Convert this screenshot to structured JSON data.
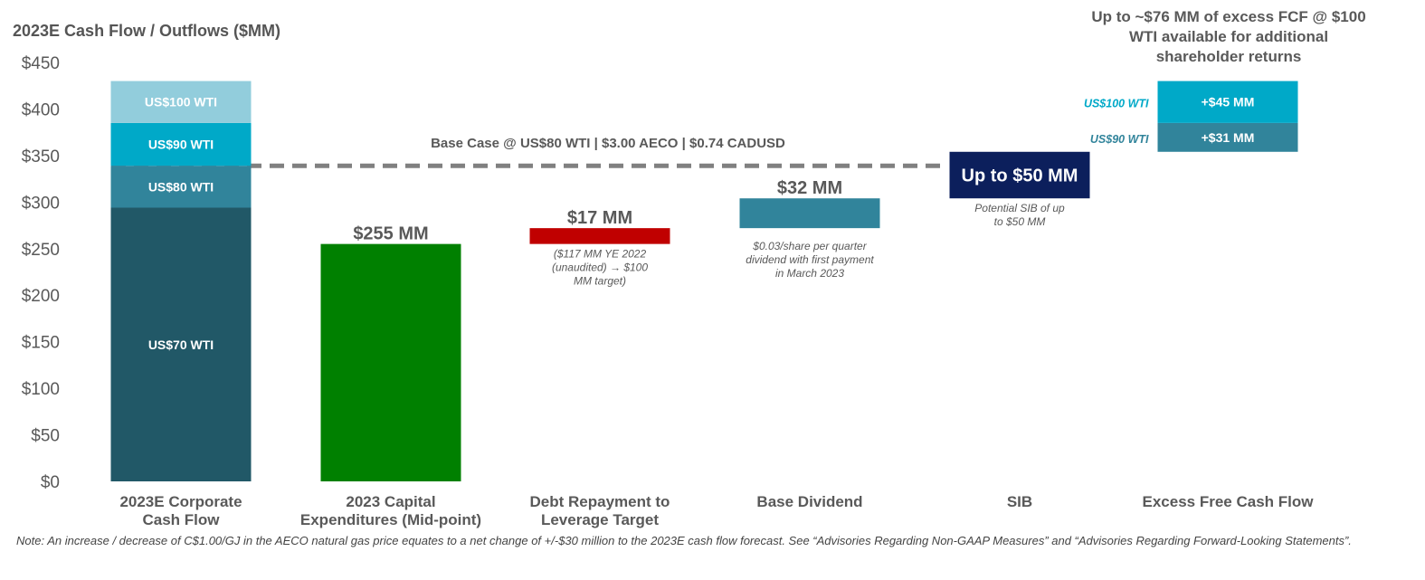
{
  "chart_data": {
    "type": "waterfall",
    "title": "2023E Cash Flow / Outflows ($MM)",
    "ylim": [
      0,
      450
    ],
    "yticks": [
      0,
      50,
      100,
      150,
      200,
      250,
      300,
      350,
      400,
      450
    ],
    "ytick_labels": [
      "$0",
      "$50",
      "$100",
      "$150",
      "$200",
      "$250",
      "$300",
      "$350",
      "$400",
      "$450"
    ],
    "grid": false,
    "categories": [
      "2023E Corporate\nCash Flow",
      "2023 Capital\nExpenditures (Mid-point)",
      "Debt Repayment to\nLeverage Target",
      "Base Dividend",
      "SIB",
      "Excess Free Cash Flow"
    ],
    "bars": [
      {
        "category": 0,
        "segments": [
          {
            "label": "US$70 WTI",
            "from": 0,
            "to": 294,
            "color": "#215867"
          },
          {
            "label": "US$80 WTI",
            "from": 294,
            "to": 339,
            "color": "#31849b"
          },
          {
            "label": "US$90 WTI",
            "from": 339,
            "to": 385,
            "color": "#00a9c8"
          },
          {
            "label": "US$100 WTI",
            "from": 385,
            "to": 430,
            "color": "#92cddc"
          }
        ]
      },
      {
        "category": 1,
        "segments": [
          {
            "from": 0,
            "to": 255,
            "color": "#008000"
          }
        ],
        "data_label": "$255 MM"
      },
      {
        "category": 2,
        "segments": [
          {
            "from": 255,
            "to": 272,
            "color": "#c00000"
          }
        ],
        "data_label": "$17 MM",
        "annotation": "($117 MM YE 2022\n(unaudited) → $100\nMM target)"
      },
      {
        "category": 3,
        "segments": [
          {
            "from": 272,
            "to": 304,
            "color": "#31849b"
          }
        ],
        "data_label": "$32 MM",
        "annotation": "$0.03/share per quarter\ndividend with first payment\nin March 2023"
      },
      {
        "category": 4,
        "segments": [
          {
            "from": 304,
            "to": 354,
            "color": "#0c1f5c",
            "label": "Up to $50 MM"
          }
        ],
        "annotation": "Potential SIB of up\nto $50 MM"
      },
      {
        "category": 5,
        "segments": [
          {
            "from": 354,
            "to": 385,
            "color": "#31849b",
            "label": "+$31 MM",
            "side_label": "US$90 WTI"
          },
          {
            "from": 385,
            "to": 430,
            "color": "#00a9c8",
            "label": "+$45 MM",
            "side_label": "US$100 WTI"
          }
        ],
        "headline": "Up to ~$76 MM of excess FCF @ $100\nWTI available for additional\nshareholder returns"
      }
    ],
    "base_case": {
      "value": 339,
      "label": "Base Case @ US$80 WTI | $3.00 AECO | $0.74 CADUSD",
      "color": "#808080"
    }
  },
  "note": "Note: An increase / decrease of C$1.00/GJ in the AECO natural gas price equates to a net change of +/-$30 million to the 2023E cash flow forecast. See “Advisories Regarding Non-GAAP Measures” and “Advisories Regarding Forward-Looking Statements”."
}
